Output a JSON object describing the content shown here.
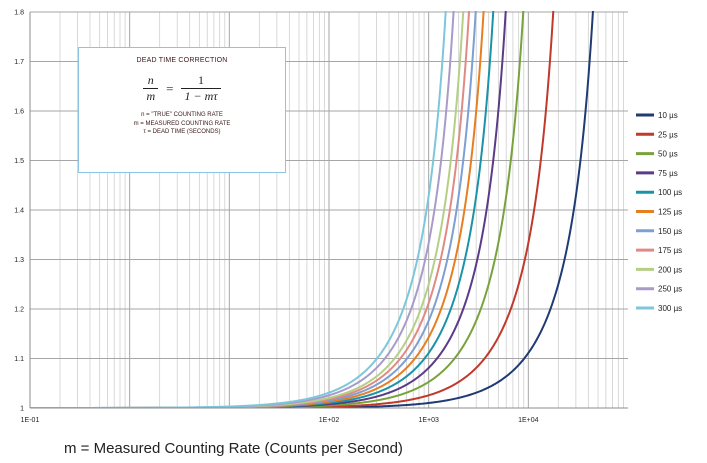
{
  "chart_data": {
    "type": "line",
    "xlabel": "m = Measured Counting Rate (Counts per Second)",
    "ylabel": "",
    "x_scale": "log",
    "xlim": [
      0.1,
      100000
    ],
    "ylim": [
      1,
      1.8
    ],
    "x_ticks": [
      "1E-01",
      "1E+02",
      "1E+03",
      "1E+04"
    ],
    "y_ticks": [
      "1",
      "1.1",
      "1.2",
      "1.3",
      "1.4",
      "1.5",
      "1.6",
      "1.7",
      "1.8"
    ],
    "grid": true,
    "legend_position": "right",
    "formula": "n/m = 1/(1 - mτ)",
    "series": [
      {
        "name": "10 µs",
        "tau": 1e-05,
        "color": "#1f3b73"
      },
      {
        "name": "25 µs",
        "tau": 2.5e-05,
        "color": "#c0392b"
      },
      {
        "name": "50 µs",
        "tau": 5e-05,
        "color": "#77a33a"
      },
      {
        "name": "75 µs",
        "tau": 7.5e-05,
        "color": "#5b3a86"
      },
      {
        "name": "100 µs",
        "tau": 0.0001,
        "color": "#1a93a8"
      },
      {
        "name": "125 µs",
        "tau": 0.000125,
        "color": "#e67e22"
      },
      {
        "name": "150 µs",
        "tau": 0.00015,
        "color": "#7d9fd3"
      },
      {
        "name": "175 µs",
        "tau": 0.000175,
        "color": "#e08a86"
      },
      {
        "name": "200 µs",
        "tau": 0.0002,
        "color": "#b5cf86"
      },
      {
        "name": "250 µs",
        "tau": 0.00025,
        "color": "#a99bc9"
      },
      {
        "name": "300 µs",
        "tau": 0.0003,
        "color": "#7ec6dc"
      }
    ]
  },
  "info_box": {
    "title": "DEAD TIME CORRECTION",
    "lhs_num": "n",
    "lhs_den": "m",
    "equals": "=",
    "rhs_num": "1",
    "rhs_den": "1 − mτ",
    "line1": "n = \"TRUE\" COUNTING RATE",
    "line2": "m = MEASURED COUNTING RATE",
    "line3": "τ = DEAD TIME (SECONDS)"
  }
}
